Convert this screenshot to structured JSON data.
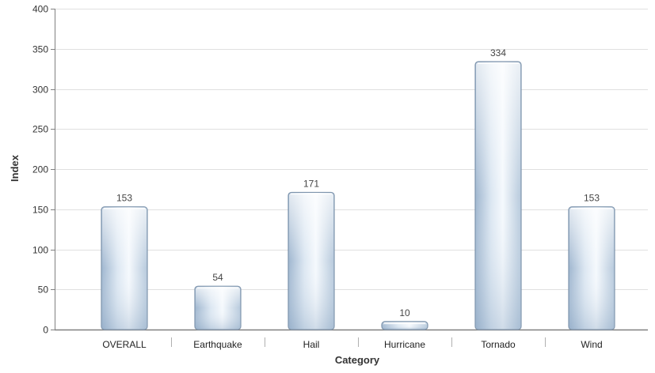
{
  "chart_data": {
    "type": "bar",
    "categories": [
      "OVERALL",
      "Earthquake",
      "Hail",
      "Hurricane",
      "Tornado",
      "Wind"
    ],
    "values": [
      153,
      54,
      171,
      10,
      334,
      153
    ],
    "data_labels": [
      "153",
      "54",
      "171",
      "10",
      "334",
      "153"
    ],
    "xlabel": "Category",
    "ylabel": "Index",
    "ylim": [
      0,
      400
    ],
    "yticks": [
      0,
      50,
      100,
      150,
      200,
      250,
      300,
      350,
      400
    ],
    "ytick_labels": [
      "0",
      "50",
      "100",
      "150",
      "200",
      "250",
      "300",
      "350",
      "400"
    ],
    "grid": true,
    "legend": "none",
    "colors": {
      "bar_fill_light": "#f4f8fc",
      "bar_fill_dark": "#a9bfd6",
      "bar_stroke": "#7f95ad",
      "grid": "#e0e0e0",
      "axis": "#808080"
    }
  }
}
